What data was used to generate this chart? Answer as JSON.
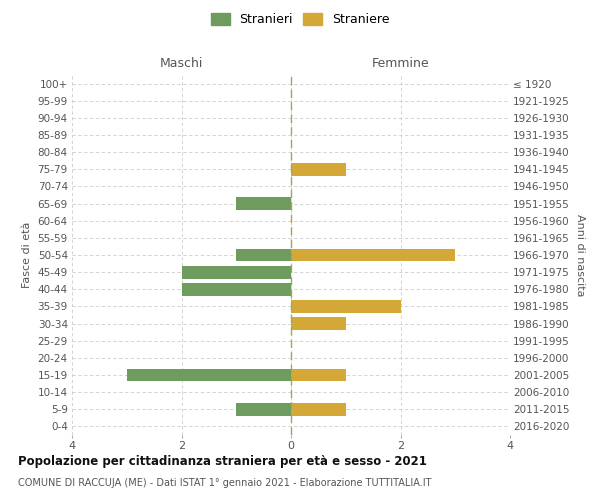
{
  "age_groups": [
    "100+",
    "95-99",
    "90-94",
    "85-89",
    "80-84",
    "75-79",
    "70-74",
    "65-69",
    "60-64",
    "55-59",
    "50-54",
    "45-49",
    "40-44",
    "35-39",
    "30-34",
    "25-29",
    "20-24",
    "15-19",
    "10-14",
    "5-9",
    "0-4"
  ],
  "birth_years": [
    "≤ 1920",
    "1921-1925",
    "1926-1930",
    "1931-1935",
    "1936-1940",
    "1941-1945",
    "1946-1950",
    "1951-1955",
    "1956-1960",
    "1961-1965",
    "1966-1970",
    "1971-1975",
    "1976-1980",
    "1981-1985",
    "1986-1990",
    "1991-1995",
    "1996-2000",
    "2001-2005",
    "2006-2010",
    "2011-2015",
    "2016-2020"
  ],
  "maschi": [
    0,
    0,
    0,
    0,
    0,
    0,
    0,
    1,
    0,
    0,
    1,
    2,
    2,
    0,
    0,
    0,
    0,
    3,
    0,
    1,
    0
  ],
  "femmine": [
    0,
    0,
    0,
    0,
    0,
    1,
    0,
    0,
    0,
    0,
    3,
    0,
    0,
    2,
    1,
    0,
    0,
    1,
    0,
    1,
    0
  ],
  "color_maschi": "#6e9b5e",
  "color_femmine": "#d4a836",
  "background_color": "#ffffff",
  "grid_color": "#cccccc",
  "zero_line_color": "#9aaa55",
  "title": "Popolazione per cittadinanza straniera per età e sesso - 2021",
  "subtitle": "COMUNE DI RACCUJA (ME) - Dati ISTAT 1° gennaio 2021 - Elaborazione TUTTITALIA.IT",
  "xlabel_left": "Maschi",
  "xlabel_right": "Femmine",
  "ylabel_left": "Fasce di età",
  "ylabel_right": "Anni di nascita",
  "legend_maschi": "Stranieri",
  "legend_femmine": "Straniere",
  "xlim": 4,
  "bar_height": 0.75
}
